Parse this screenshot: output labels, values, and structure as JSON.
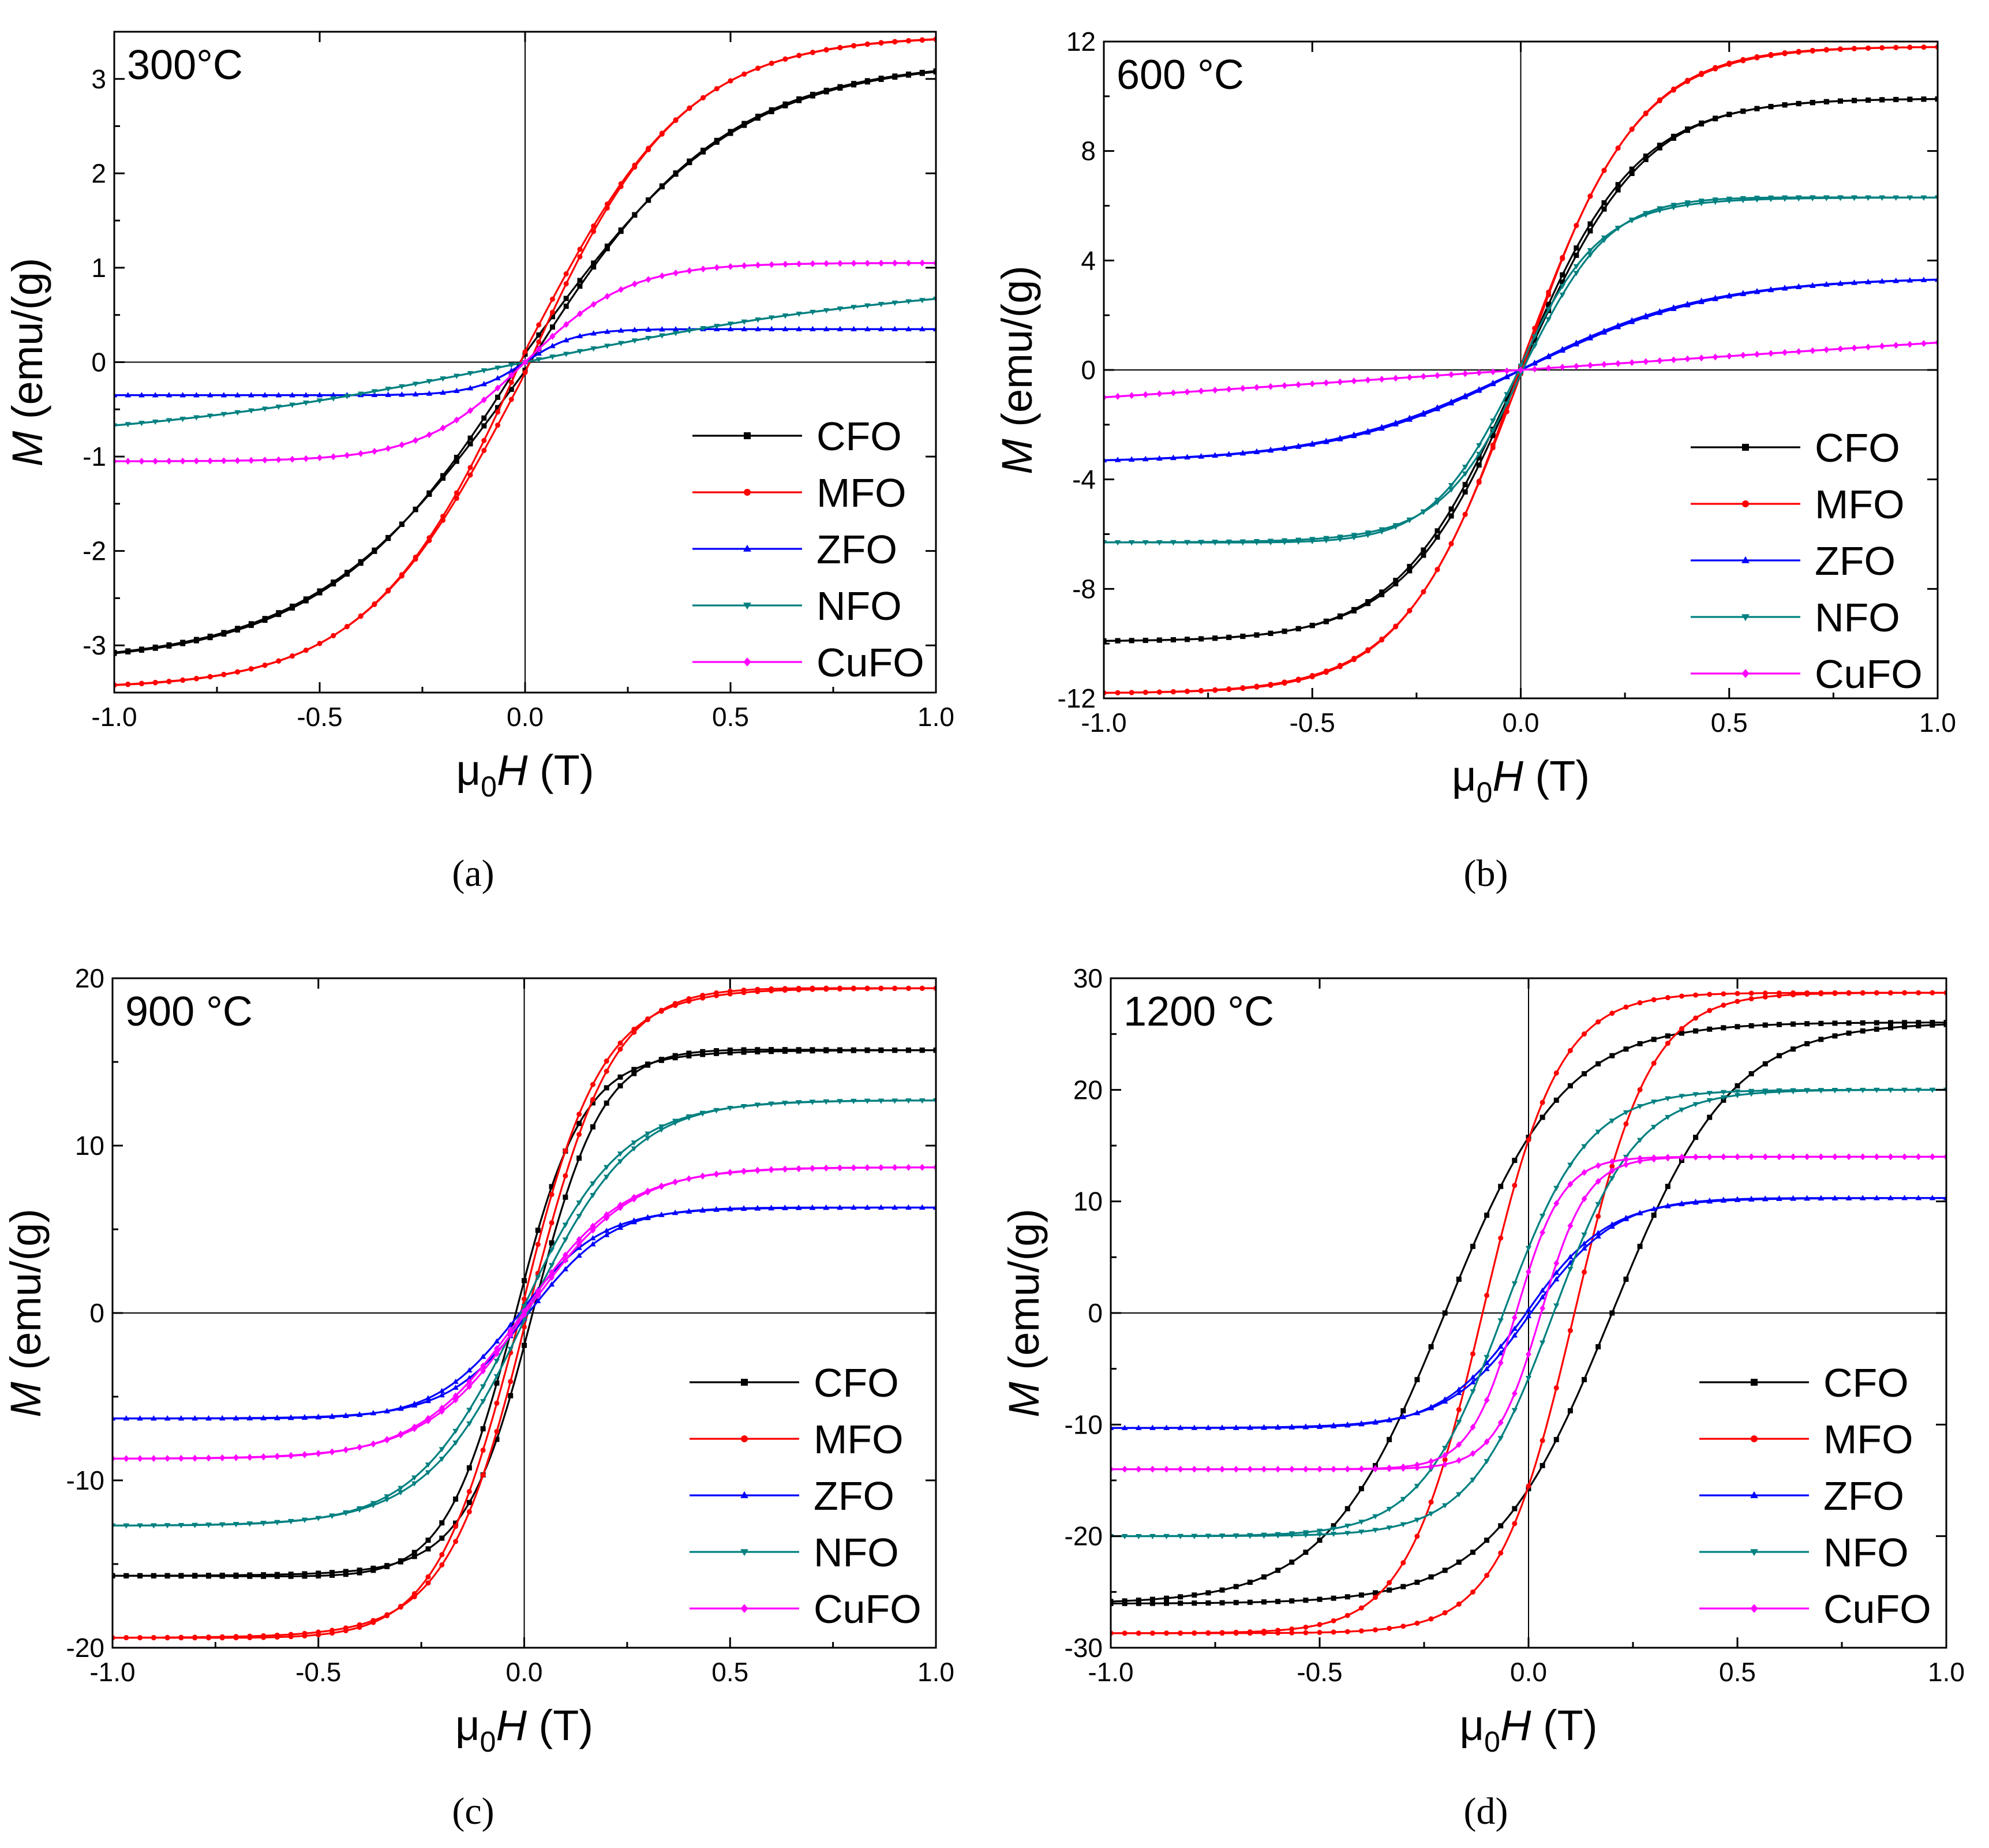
{
  "figure": {
    "type": "multi-panel magnetic hysteresis curves",
    "legend_order": [
      "CFO",
      "MFO",
      "ZFO",
      "NFO",
      "CuFO"
    ]
  },
  "series_styles": {
    "CFO": {
      "color": "#000000",
      "marker": "square"
    },
    "MFO": {
      "color": "#ff0000",
      "marker": "circle"
    },
    "ZFO": {
      "color": "#0000ff",
      "marker": "triangle-up"
    },
    "NFO": {
      "color": "#008080",
      "marker": "triangle-down"
    },
    "CuFO": {
      "color": "#ff00ff",
      "marker": "diamond"
    }
  },
  "chart_data": [
    {
      "type": "line",
      "panel": "a",
      "caption": "(a)",
      "title": "300°C",
      "title_temp": "300",
      "title_unit": "°C",
      "xlabel": "μ0H (T)",
      "xlabel_mu": "μ",
      "xlabel_sub": "0",
      "xlabel_H": "H",
      "xlabel_unit": " (T)",
      "ylabel": "M (emu/(g)",
      "ylabel_M": "M",
      "ylabel_unit": " (emu/(g)",
      "xlim": [
        -1.0,
        1.0
      ],
      "ylim": [
        -3.5,
        3.5
      ],
      "xticks": [
        -1.0,
        -0.5,
        0.0,
        0.5,
        1.0
      ],
      "xtick_labels": [
        "-1.0",
        "-0.5",
        "0.0",
        "0.5",
        "1.0"
      ],
      "yticks": [
        -3,
        -2,
        -1,
        0,
        1,
        2,
        3
      ],
      "ytick_labels": [
        "-3",
        "-2",
        "-1",
        "0",
        "1",
        "2",
        "3"
      ],
      "legend_position": "bottom-right",
      "series": [
        {
          "name": "CFO",
          "Ms": 3.08,
          "Hc": 0.01,
          "k": 2.0,
          "loop_gap": 0.05
        },
        {
          "name": "MFO",
          "Ms": 3.42,
          "Hc": 0.01,
          "k": 2.6,
          "loop_gap": 0.06
        },
        {
          "name": "ZFO",
          "Ms": 0.35,
          "Hc": 0.0,
          "k": 8.0,
          "loop_gap": 0.0
        },
        {
          "name": "NFO",
          "Ms": 0.67,
          "Hc": 0.0,
          "k": 1.0,
          "loop_gap": 0.0
        },
        {
          "name": "CuFO",
          "Ms": 1.05,
          "Hc": 0.0,
          "k": 4.0,
          "loop_gap": 0.0
        }
      ]
    },
    {
      "type": "line",
      "panel": "b",
      "caption": "(b)",
      "title": "600 °C",
      "title_temp": "600 ",
      "title_unit": "°C",
      "xlabel": "μ0H (T)",
      "xlabel_mu": "μ",
      "xlabel_sub": "0",
      "xlabel_H": "H",
      "xlabel_unit": " (T)",
      "ylabel": "M (emu/(g)",
      "ylabel_M": "M",
      "ylabel_unit": " (emu/(g)",
      "xlim": [
        -1.0,
        1.0
      ],
      "ylim": [
        -12,
        12
      ],
      "xticks": [
        -1.0,
        -0.5,
        0.0,
        0.5,
        1.0
      ],
      "xtick_labels": [
        "-1.0",
        "-0.5",
        "0.0",
        "0.5",
        "1.0"
      ],
      "yticks": [
        -12,
        -8,
        -4,
        0,
        4,
        8,
        12
      ],
      "ytick_labels": [
        "-12",
        "-8",
        "-4",
        "0",
        "4",
        "8",
        "12"
      ],
      "legend_position": "bottom-right",
      "series": [
        {
          "name": "CFO",
          "Ms": 9.9,
          "Hc": 0.015,
          "k": 3.5,
          "loop_gap": 0.05
        },
        {
          "name": "MFO",
          "Ms": 11.8,
          "Hc": 0.01,
          "k": 3.6,
          "loop_gap": 0.05
        },
        {
          "name": "ZFO",
          "Ms": 3.3,
          "Hc": 0.01,
          "k": 2.2,
          "loop_gap": 0.02
        },
        {
          "name": "NFO",
          "Ms": 6.3,
          "Hc": 0.02,
          "k": 5.0,
          "loop_gap": 0.08
        },
        {
          "name": "CuFO",
          "Ms": 1.0,
          "Hc": 0.0,
          "k": 0.2,
          "loop_gap": 0.0
        }
      ]
    },
    {
      "type": "line",
      "panel": "c",
      "caption": "(c)",
      "title": "900 °C",
      "title_temp": "900 ",
      "title_unit": "°C",
      "xlabel": "μ0H (T)",
      "xlabel_mu": "μ",
      "xlabel_sub": "0",
      "xlabel_H": "H",
      "xlabel_unit": " (T)",
      "ylabel": "M (emu/(g)",
      "ylabel_M": "M",
      "ylabel_unit": " (emu/(g)",
      "xlim": [
        -1.0,
        1.0
      ],
      "ylim": [
        -20,
        20
      ],
      "xticks": [
        -1.0,
        -0.5,
        0.0,
        0.5,
        1.0
      ],
      "xtick_labels": [
        "-1.0",
        "-0.5",
        "0.0",
        "0.5",
        "1.0"
      ],
      "yticks": [
        -20,
        -10,
        0,
        10,
        20
      ],
      "ytick_labels": [
        "-20",
        "-10",
        "0",
        "10",
        "20"
      ],
      "legend_position": "bottom-right",
      "series": [
        {
          "name": "CFO",
          "Ms": 15.7,
          "Hc": 0.03,
          "k": 6.0,
          "loop_gap": 0.06
        },
        {
          "name": "MFO",
          "Ms": 19.4,
          "Hc": 0.02,
          "k": 5.0,
          "loop_gap": 0.06
        },
        {
          "name": "ZFO",
          "Ms": 6.3,
          "Hc": 0.02,
          "k": 5.0,
          "loop_gap": 0.05
        },
        {
          "name": "NFO",
          "Ms": 12.7,
          "Hc": 0.02,
          "k": 4.0,
          "loop_gap": 0.05
        },
        {
          "name": "CuFO",
          "Ms": 8.7,
          "Hc": 0.015,
          "k": 4.0,
          "loop_gap": 0.05
        }
      ]
    },
    {
      "type": "line",
      "panel": "d",
      "caption": "(d)",
      "title": "1200 °C",
      "title_temp": "1200 ",
      "title_unit": "°C",
      "xlabel": "μ0H (T)",
      "xlabel_mu": "μ",
      "xlabel_sub": "0",
      "xlabel_H": "H",
      "xlabel_unit": " (T)",
      "ylabel": "M (emu/(g)",
      "ylabel_M": "M",
      "ylabel_unit": " (emu/(g)",
      "xlim": [
        -1.0,
        1.0
      ],
      "ylim": [
        -30,
        30
      ],
      "xticks": [
        -1.0,
        -0.5,
        0.0,
        0.5,
        1.0
      ],
      "xtick_labels": [
        "-1.0",
        "-0.5",
        "0.0",
        "0.5",
        "1.0"
      ],
      "yticks": [
        -30,
        -20,
        -10,
        0,
        10,
        20,
        30
      ],
      "ytick_labels": [
        "-30",
        "-20",
        "-10",
        "0",
        "10",
        "20",
        "30"
      ],
      "legend_position": "bottom-right",
      "series": [
        {
          "name": "CFO",
          "Ms": 26.0,
          "Hc": 0.2,
          "k": 3.5,
          "loop_gap": 0.0
        },
        {
          "name": "MFO",
          "Ms": 28.7,
          "Hc": 0.11,
          "k": 5.5,
          "loop_gap": 0.0
        },
        {
          "name": "ZFO",
          "Ms": 10.3,
          "Hc": 0.015,
          "k": 5.0,
          "loop_gap": 0.05
        },
        {
          "name": "NFO",
          "Ms": 20.0,
          "Hc": 0.06,
          "k": 5.0,
          "loop_gap": 0.0
        },
        {
          "name": "CuFO",
          "Ms": 14.0,
          "Hc": 0.03,
          "k": 9.0,
          "loop_gap": 0.0
        }
      ]
    }
  ]
}
